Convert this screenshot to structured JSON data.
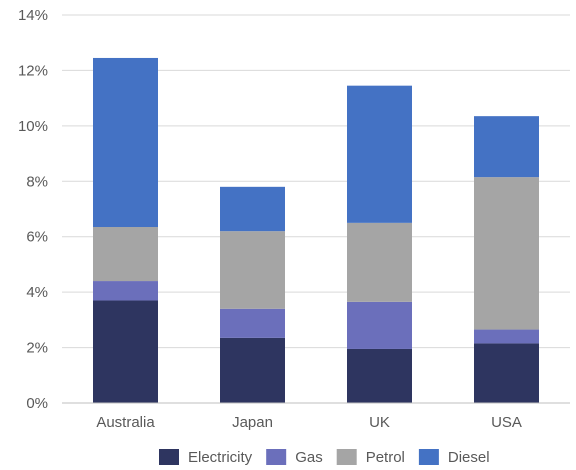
{
  "chart_data": {
    "type": "bar",
    "stacked": true,
    "title": "",
    "xlabel": "",
    "ylabel": "",
    "categories": [
      "Australia",
      "Japan",
      "UK",
      "USA"
    ],
    "series": [
      {
        "name": "Electricity",
        "color": "#2e3560",
        "values": [
          3.7,
          2.35,
          1.95,
          2.15
        ]
      },
      {
        "name": "Gas",
        "color": "#6b6fbb",
        "values": [
          0.7,
          1.05,
          1.7,
          0.5
        ]
      },
      {
        "name": "Petrol",
        "color": "#a5a5a5",
        "values": [
          1.95,
          2.8,
          2.85,
          5.5
        ]
      },
      {
        "name": "Diesel",
        "color": "#4472c4",
        "values": [
          6.1,
          1.6,
          4.95,
          2.2
        ]
      }
    ],
    "ylim": [
      0,
      14
    ],
    "yticks": [
      0,
      2,
      4,
      6,
      8,
      10,
      12,
      14
    ],
    "ytick_labels": [
      "0%",
      "2%",
      "4%",
      "6%",
      "8%",
      "10%",
      "12%",
      "14%"
    ],
    "grid": true,
    "legend_position": "bottom"
  }
}
